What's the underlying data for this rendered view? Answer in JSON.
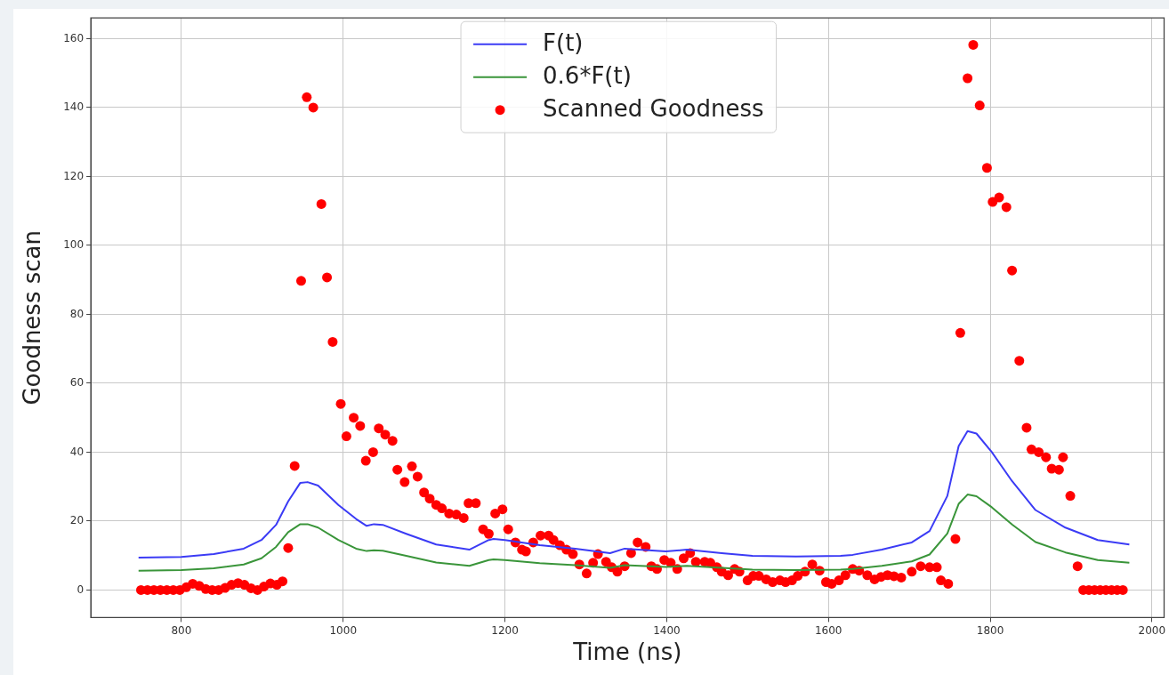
{
  "chart_data": {
    "type": "line",
    "xlabel": "Time (ns)",
    "ylabel": "Goodness scan",
    "xlim": [
      688,
      2015
    ],
    "ylim": [
      -8,
      166
    ],
    "xticks": [
      800,
      1000,
      1200,
      1400,
      1600,
      1800,
      2000
    ],
    "yticks": [
      0,
      20,
      40,
      60,
      80,
      100,
      120,
      140,
      160
    ],
    "grid": true,
    "legend": "top",
    "series": [
      {
        "name": "F(t)",
        "type": "line",
        "marker": "none",
        "color": "#3b3bf5",
        "x": [
          747,
          800,
          840,
          877,
          899,
          917,
          932,
          947,
          956,
          969,
          994,
          1016,
          1029,
          1038,
          1049,
          1078,
          1115,
          1156,
          1180,
          1186,
          1200,
          1243,
          1287,
          1330,
          1348,
          1399,
          1425,
          1468,
          1506,
          1560,
          1615,
          1630,
          1666,
          1703,
          1725,
          1747,
          1761,
          1772,
          1783,
          1802,
          1827,
          1856,
          1893,
          1933,
          1972
        ],
        "values": [
          9.4,
          9.6,
          10.4,
          12,
          14.5,
          18.9,
          25.7,
          31.1,
          31.3,
          30.3,
          24.7,
          20.6,
          18.6,
          19.1,
          18.9,
          16.3,
          13.2,
          11.7,
          14.5,
          14.8,
          14.5,
          13,
          12,
          10.7,
          12,
          11.2,
          11.7,
          10.7,
          9.9,
          9.7,
          9.9,
          10.2,
          11.7,
          13.8,
          17.1,
          27.3,
          41.8,
          46.1,
          45.4,
          40,
          31.6,
          23.2,
          18.1,
          14.5,
          13.2
        ]
      },
      {
        "name": "0.6*F(t)",
        "type": "line",
        "marker": "none",
        "color": "#3a953a",
        "x": [
          747,
          800,
          840,
          877,
          899,
          917,
          932,
          947,
          956,
          969,
          994,
          1016,
          1029,
          1038,
          1049,
          1078,
          1115,
          1156,
          1180,
          1186,
          1200,
          1243,
          1287,
          1330,
          1348,
          1399,
          1425,
          1468,
          1506,
          1560,
          1615,
          1630,
          1666,
          1703,
          1725,
          1747,
          1761,
          1772,
          1783,
          1802,
          1827,
          1856,
          1893,
          1933,
          1972
        ],
        "values": [
          5.6,
          5.8,
          6.3,
          7.4,
          9.2,
          12.5,
          16.8,
          19.1,
          19.1,
          18.1,
          14.5,
          12,
          11.3,
          11.5,
          11.4,
          9.9,
          8,
          7,
          8.7,
          8.9,
          8.7,
          7.8,
          7.2,
          6.4,
          7.2,
          6.7,
          7,
          6.4,
          5.9,
          5.8,
          5.9,
          6.1,
          7,
          8.3,
          10.3,
          16.4,
          25,
          27.7,
          27.2,
          24,
          19,
          13.9,
          10.9,
          8.7,
          7.9
        ]
      },
      {
        "name": "Scanned Goodness",
        "type": "scatter",
        "marker": "circle",
        "color": "#ff0000",
        "x": [
          750,
          758,
          766,
          774,
          782,
          790,
          798,
          806,
          814,
          822,
          830,
          838,
          846,
          854,
          862,
          870,
          878,
          886,
          894,
          902,
          910,
          918,
          925,
          932,
          940,
          948,
          955,
          963,
          973,
          980,
          987,
          997,
          1004,
          1013,
          1021,
          1028,
          1037,
          1044,
          1052,
          1061,
          1067,
          1076,
          1085,
          1092,
          1100,
          1107,
          1115,
          1122,
          1131,
          1140,
          1149,
          1155,
          1164,
          1173,
          1180,
          1188,
          1197,
          1204,
          1213,
          1221,
          1226,
          1235,
          1244,
          1254,
          1260,
          1268,
          1276,
          1284,
          1292,
          1301,
          1309,
          1315,
          1325,
          1332,
          1339,
          1348,
          1356,
          1364,
          1374,
          1381,
          1388,
          1397,
          1405,
          1413,
          1421,
          1429,
          1436,
          1447,
          1454,
          1462,
          1468,
          1476,
          1484,
          1490,
          1500,
          1507,
          1514,
          1523,
          1531,
          1540,
          1547,
          1555,
          1562,
          1571,
          1580,
          1589,
          1597,
          1604,
          1613,
          1621,
          1630,
          1638,
          1648,
          1657,
          1665,
          1673,
          1681,
          1690,
          1703,
          1714,
          1725,
          1734,
          1739,
          1748,
          1757,
          1763,
          1772,
          1779,
          1787,
          1796,
          1803,
          1811,
          1820,
          1827,
          1836,
          1845,
          1851,
          1860,
          1869,
          1876,
          1885,
          1890,
          1899,
          1908,
          1915,
          1922,
          1929,
          1936,
          1943,
          1950,
          1957,
          1964
        ],
        "values": [
          0,
          0,
          0,
          0,
          0,
          0,
          0,
          0.8,
          1.8,
          1.2,
          0.3,
          0,
          0,
          0.6,
          1.5,
          2,
          1.5,
          0.5,
          0,
          1,
          1.9,
          1.5,
          2.5,
          12.2,
          36,
          89.7,
          143,
          140,
          112,
          90.7,
          72,
          54,
          44.6,
          50,
          47.6,
          37.5,
          40,
          46.9,
          45.1,
          43.3,
          34.9,
          31.3,
          35.9,
          32.9,
          28.3,
          26.5,
          24.7,
          23.7,
          22.2,
          21.9,
          20.9,
          25.2,
          25.2,
          17.6,
          16.3,
          22.2,
          23.4,
          17.6,
          13.8,
          11.7,
          11.2,
          13.8,
          15.8,
          15.8,
          14.5,
          13,
          11.7,
          10.4,
          7.4,
          4.8,
          7.9,
          10.4,
          8.2,
          6.6,
          5.3,
          6.9,
          10.7,
          13.8,
          12.5,
          6.9,
          6.1,
          8.7,
          7.9,
          6.1,
          9.2,
          10.7,
          8.2,
          8.2,
          7.9,
          6.6,
          5.3,
          4.3,
          6.1,
          5.3,
          2.8,
          4.1,
          4.1,
          3.1,
          2.3,
          2.8,
          2.3,
          2.8,
          4.1,
          5.3,
          7.4,
          5.6,
          2.3,
          1.8,
          2.8,
          4.3,
          6.1,
          5.6,
          4.3,
          3.1,
          3.8,
          4.3,
          4,
          3.6,
          5.3,
          6.9,
          6.6,
          6.6,
          2.8,
          1.8,
          14.8,
          74.6,
          148.5,
          158.2,
          140.6,
          122.5,
          112.6,
          113.9,
          111.1,
          92.7,
          66.5,
          47.1,
          40.8,
          40,
          38.5,
          35.2,
          34.9,
          38.5,
          27.3,
          6.9,
          0,
          0,
          0,
          0,
          0,
          0,
          0,
          0
        ]
      }
    ]
  }
}
